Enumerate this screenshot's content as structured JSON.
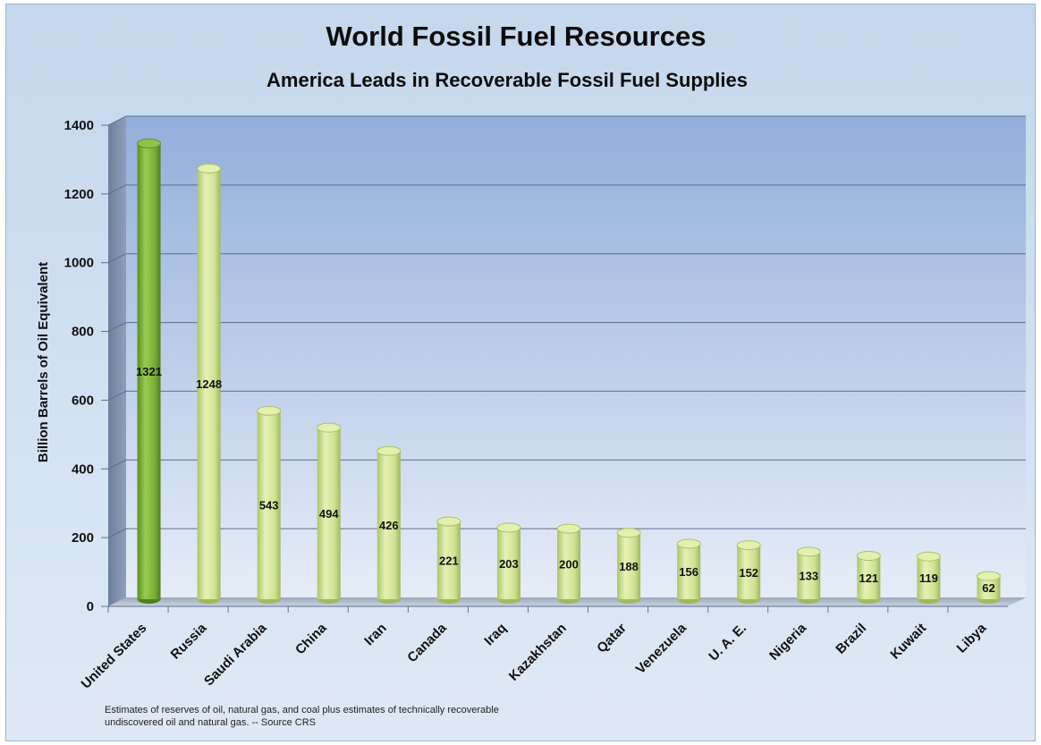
{
  "chart_data": {
    "type": "bar",
    "title": "World Fossil Fuel Resources",
    "subtitle": "America Leads in Recoverable Fossil Fuel Supplies",
    "xlabel": "",
    "ylabel": "Billion Barrels of Oil Equivalent",
    "ylim": [
      0,
      1400
    ],
    "yticks": [
      0,
      200,
      400,
      600,
      800,
      1000,
      1200,
      1400
    ],
    "grid": true,
    "categories": [
      "United States",
      "Russia",
      "Saudi Arabia",
      "China",
      "Iran",
      "Canada",
      "Iraq",
      "Kazakhstan",
      "Qatar",
      "Venezuela",
      "U. A. E.",
      "Nigeria",
      "Brazil",
      "Kuwait",
      "Libya"
    ],
    "values": [
      1321,
      1248,
      543,
      494,
      426,
      221,
      203,
      200,
      188,
      156,
      152,
      133,
      121,
      119,
      62
    ],
    "highlight_category": "United States",
    "colors": {
      "highlight": "#7fb236",
      "bar": "#d4e69a",
      "plot_top": "#93aedb",
      "plot_bottom": "#e6edf8"
    },
    "footnote_lines": [
      "Estimates of reserves of oil, natural gas, and coal plus estimates of technically recoverable",
      "undiscovered oil and natural gas. -- Source CRS"
    ]
  }
}
